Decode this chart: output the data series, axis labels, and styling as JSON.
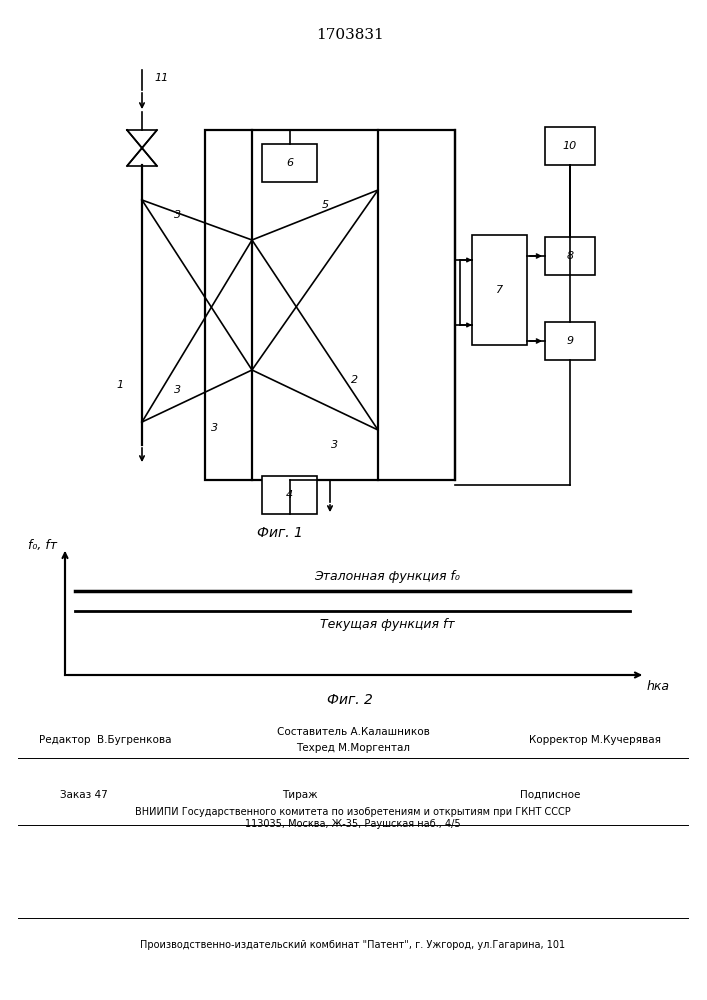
{
  "title_text": "1703831",
  "fig1_caption": "Фиг. 1",
  "fig2_caption": "Фиг. 2",
  "fig2_ylabel": "f₀, fт",
  "fig2_xlabel": "hка",
  "fig2_line1_label": "Эталонная функция f₀",
  "fig2_line2_label": "Текущая функция fт",
  "footer_line1_col1": "Редактор  В.Бугренкова",
  "footer_line1_col2": "Составитель А.Калашников",
  "footer_line1_col3": "Корректор М.Кучерявая",
  "footer_line2_col2": "Техред М.Моргентал",
  "footer_order": "Заказ 47",
  "footer_tirazh": "Тираж",
  "footer_podp": "Подписное",
  "footer_vnipi": "ВНИИПИ Государственного комитета по изобретениям и открытиям при ГКНТ СССР",
  "footer_addr": "113035, Москва, Ж-35, Раушская наб., 4/5",
  "footer_patent": "Производственно-издательский комбинат \"Патент\", г. Ужгород, ул.Гагарина, 101"
}
